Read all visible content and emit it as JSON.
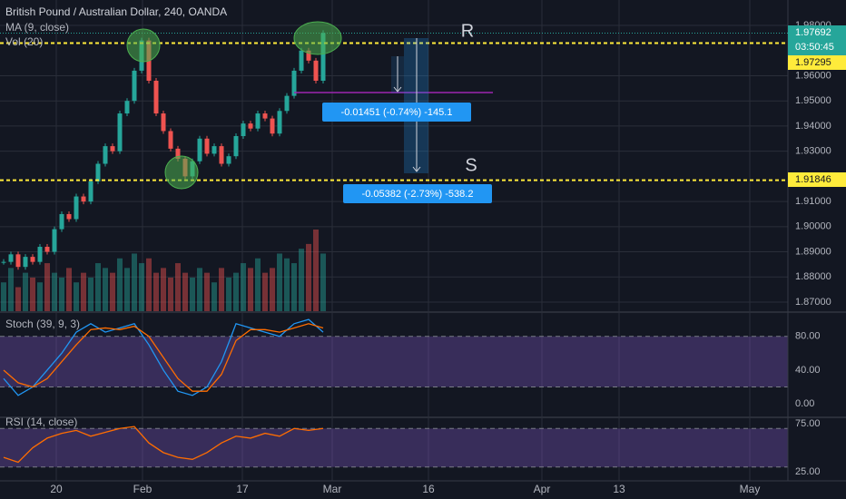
{
  "header": {
    "title": "British Pound / Australian Dollar, 240, OANDA",
    "ma_label": "MA (9, close)",
    "vol_label": "Vol (20)",
    "countdown": "03:50:45"
  },
  "annotations": {
    "resistance": "R",
    "support": "S",
    "measure_small": "-0.01451 (-0.74%) -145.1",
    "measure_large": "-0.05382 (-2.73%) -538.2"
  },
  "time_axis": {
    "labels": [
      "20",
      "Feb",
      "17",
      "Mar",
      "16",
      "Apr",
      "13",
      "May"
    ]
  },
  "chart_data": [
    {
      "type": "candlestick",
      "name": "GBPAUD",
      "closes": [
        1.886,
        1.889,
        1.884,
        1.888,
        1.886,
        1.892,
        1.89,
        1.899,
        1.905,
        1.903,
        1.912,
        1.91,
        1.918,
        1.925,
        1.932,
        1.93,
        1.945,
        1.95,
        1.962,
        1.974,
        1.958,
        1.945,
        1.938,
        1.931,
        1.927,
        1.92,
        1.926,
        1.935,
        1.929,
        1.932,
        1.925,
        1.928,
        1.936,
        1.941,
        1.939,
        1.945,
        1.943,
        1.937,
        1.946,
        1.952,
        1.962,
        1.97,
        1.966,
        1.958,
        1.977
      ],
      "volume": [
        30,
        45,
        25,
        40,
        35,
        30,
        50,
        40,
        35,
        45,
        30,
        40,
        35,
        50,
        45,
        40,
        55,
        45,
        60,
        50,
        55,
        40,
        45,
        35,
        50,
        40,
        35,
        45,
        40,
        30,
        45,
        35,
        40,
        50,
        45,
        55,
        40,
        45,
        60,
        55,
        50,
        65,
        70,
        85,
        60
      ],
      "up_color": "#26a69a",
      "down_color": "#ef5350",
      "ylim": [
        1.8664,
        1.9901
      ],
      "yticks": [
        {
          "value": 1.87,
          "label": "1.87000"
        },
        {
          "value": 1.88,
          "label": "1.88000"
        },
        {
          "value": 1.89,
          "label": "1.89000"
        },
        {
          "value": 1.9,
          "label": "1.90000"
        },
        {
          "value": 1.91,
          "label": "1.91000"
        },
        {
          "value": 1.93,
          "label": "1.93000"
        },
        {
          "value": 1.94,
          "label": "1.94000"
        },
        {
          "value": 1.95,
          "label": "1.95000"
        },
        {
          "value": 1.96,
          "label": "1.96000"
        },
        {
          "value": 1.98,
          "label": "1.98000"
        }
      ],
      "last_price": 1.97692,
      "hlines": [
        {
          "value": 1.97295,
          "color": "#ffeb3b"
        },
        {
          "value": 1.91846,
          "color": "#ffeb3b"
        }
      ]
    },
    {
      "type": "line",
      "title": "Stoch (39, 9, 3)",
      "series": [
        {
          "color": "#2196f3",
          "values": [
            30,
            10,
            20,
            40,
            60,
            85,
            95,
            85,
            90,
            95,
            70,
            40,
            15,
            10,
            20,
            50,
            95,
            90,
            85,
            80,
            95,
            100,
            85
          ]
        },
        {
          "color": "#ff6d00",
          "values": [
            40,
            25,
            20,
            30,
            50,
            70,
            88,
            90,
            88,
            92,
            80,
            55,
            30,
            15,
            15,
            35,
            75,
            88,
            88,
            85,
            90,
            95,
            90
          ]
        }
      ],
      "ylim": [
        -14.9,
        107.7
      ],
      "bands": [
        20,
        80
      ],
      "yticks": [
        {
          "value": 80,
          "label": "80.00"
        },
        {
          "value": 40,
          "label": "40.00"
        },
        {
          "value": 0,
          "label": "0.00"
        }
      ]
    },
    {
      "type": "line",
      "title": "RSI (14, close)",
      "series": [
        {
          "color": "#ff6d00",
          "values": [
            40,
            35,
            50,
            60,
            65,
            68,
            62,
            66,
            70,
            72,
            55,
            45,
            40,
            38,
            45,
            55,
            62,
            60,
            65,
            62,
            70,
            68,
            70
          ]
        }
      ],
      "ylim": [
        15.7,
        80.6
      ],
      "bands": [
        30,
        70
      ],
      "yticks": [
        {
          "value": 75,
          "label": "75.00"
        },
        {
          "value": 25,
          "label": "25.00"
        }
      ]
    }
  ]
}
